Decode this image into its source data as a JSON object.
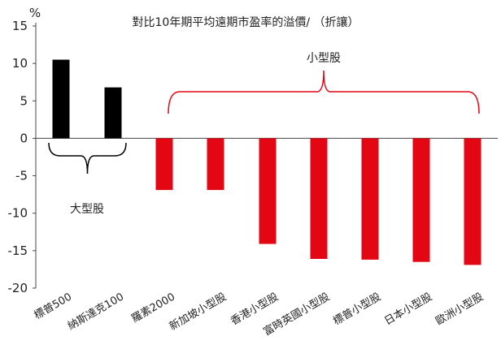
{
  "chart_data": {
    "type": "bar",
    "title": "對比10年期平均遠期市盈率的溢價/ （折讓）",
    "ylabel": "%",
    "xlabel": "",
    "ylim": [
      -20,
      15
    ],
    "yticks": [
      15,
      10,
      5,
      0,
      -5,
      -10,
      -15,
      -20
    ],
    "grid": false,
    "categories": [
      "標普500",
      "納斯達克100",
      "羅素2000",
      "新加坡小型股",
      "香港小型股",
      "富時英國小型股",
      "標普小型股",
      "日本小型股",
      "歐洲小型股"
    ],
    "values": [
      10.5,
      6.8,
      -6.9,
      -6.9,
      -14.1,
      -16.1,
      -16.2,
      -16.5,
      -16.9
    ],
    "bar_colors": [
      "#000000",
      "#000000",
      "#e30613",
      "#e30613",
      "#e30613",
      "#e30613",
      "#e30613",
      "#e30613",
      "#e30613"
    ],
    "annotations": [
      {
        "label": "大型股",
        "covers": [
          "標普500",
          "納斯達克100"
        ],
        "color": "#000000"
      },
      {
        "label": "小型股",
        "covers": [
          "羅素2000",
          "新加坡小型股",
          "香港小型股",
          "富時英國小型股",
          "標普小型股",
          "日本小型股",
          "歐洲小型股"
        ],
        "color": "#e30613"
      }
    ]
  }
}
